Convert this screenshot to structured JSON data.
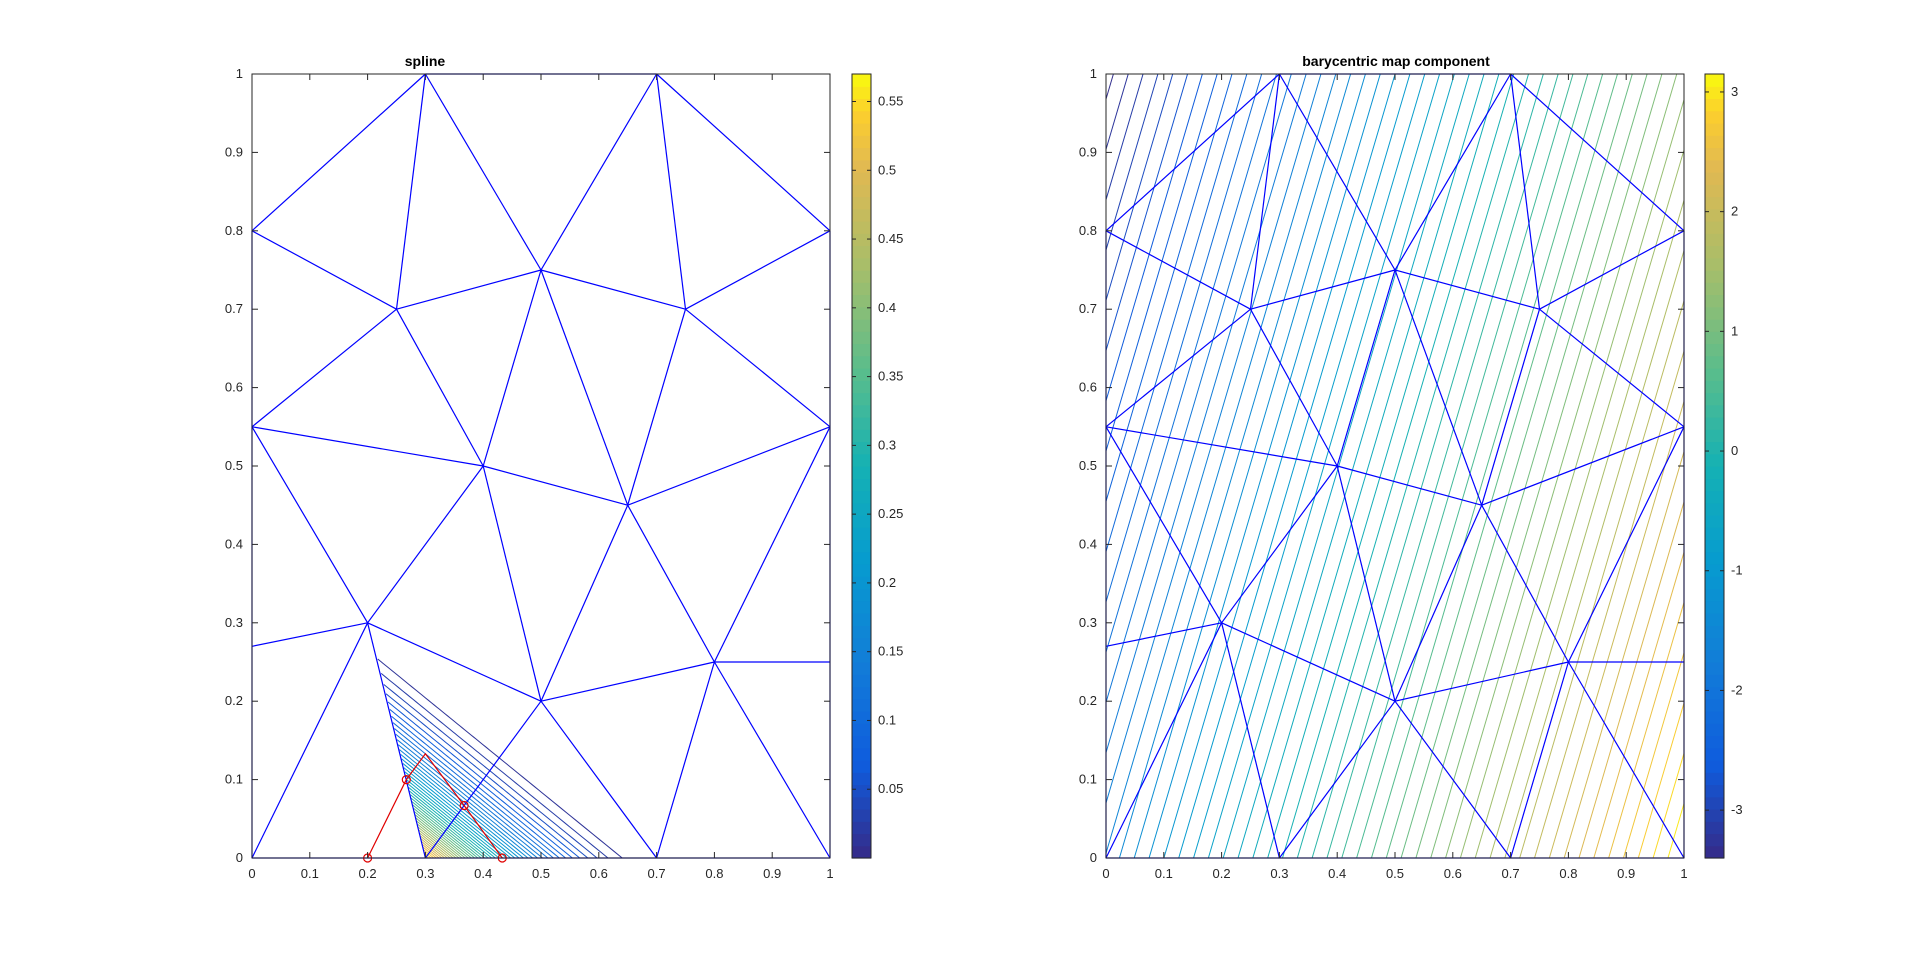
{
  "chart_data": [
    {
      "type": "contour",
      "title": "spline",
      "xlabel": "",
      "ylabel": "",
      "xlim": [
        0,
        1
      ],
      "ylim": [
        0,
        1
      ],
      "xticks": [
        "0",
        "0.1",
        "0.2",
        "0.3",
        "0.4",
        "0.5",
        "0.6",
        "0.7",
        "0.8",
        "0.9",
        "1"
      ],
      "yticks": [
        "0",
        "0.1",
        "0.2",
        "0.3",
        "0.4",
        "0.5",
        "0.6",
        "0.7",
        "0.8",
        "0.9",
        "1"
      ],
      "grid": false,
      "mesh_color": "#0000ff",
      "vertices": [
        [
          0,
          0
        ],
        [
          0.3,
          0
        ],
        [
          0.7,
          0
        ],
        [
          1,
          0
        ],
        [
          0,
          0.27
        ],
        [
          0,
          0.55
        ],
        [
          0,
          0.8
        ],
        [
          0.3,
          1
        ],
        [
          0.7,
          1
        ],
        [
          1,
          0.8
        ],
        [
          1,
          0.55
        ],
        [
          1,
          0.25
        ],
        [
          0.2,
          0.3
        ],
        [
          0.25,
          0.7
        ],
        [
          0.4,
          0.5
        ],
        [
          0.5,
          0.75
        ],
        [
          0.5,
          0.2
        ],
        [
          0.65,
          0.45
        ],
        [
          0.75,
          0.7
        ],
        [
          0.8,
          0.25
        ]
      ],
      "edges": [
        [
          0,
          1
        ],
        [
          1,
          2
        ],
        [
          2,
          3
        ],
        [
          3,
          11
        ],
        [
          11,
          10
        ],
        [
          10,
          9
        ],
        [
          9,
          8
        ],
        [
          8,
          7
        ],
        [
          7,
          6
        ],
        [
          6,
          5
        ],
        [
          5,
          4
        ],
        [
          4,
          0
        ],
        [
          0,
          12
        ],
        [
          1,
          12
        ],
        [
          1,
          16
        ],
        [
          2,
          16
        ],
        [
          2,
          19
        ],
        [
          3,
          19
        ],
        [
          4,
          12
        ],
        [
          5,
          12
        ],
        [
          5,
          14
        ],
        [
          5,
          13
        ],
        [
          6,
          13
        ],
        [
          7,
          13
        ],
        [
          7,
          15
        ],
        [
          8,
          15
        ],
        [
          8,
          18
        ],
        [
          9,
          18
        ],
        [
          10,
          18
        ],
        [
          10,
          17
        ],
        [
          10,
          19
        ],
        [
          11,
          19
        ],
        [
          12,
          14
        ],
        [
          12,
          16
        ],
        [
          13,
          14
        ],
        [
          13,
          15
        ],
        [
          14,
          15
        ],
        [
          14,
          16
        ],
        [
          14,
          17
        ],
        [
          15,
          17
        ],
        [
          15,
          18
        ],
        [
          16,
          17
        ],
        [
          16,
          19
        ],
        [
          17,
          18
        ],
        [
          17,
          19
        ]
      ],
      "contour_field": {
        "center": [
          0.3,
          0
        ],
        "peak": 0.565,
        "support_triangle": [
          [
            0.2,
            0.3
          ],
          [
            0.3,
            0
          ],
          [
            0.7,
            0
          ]
        ],
        "levels_min": 0.0125,
        "levels_step": 0.0125,
        "level_count": 45
      },
      "overlay": {
        "color": "#e00000",
        "polyline": [
          [
            0.2,
            0
          ],
          [
            0.267,
            0.1
          ],
          [
            0.3,
            0.133
          ],
          [
            0.367,
            0.067
          ],
          [
            0.433,
            0
          ]
        ],
        "markers": [
          [
            0.2,
            0
          ],
          [
            0.267,
            0.1
          ],
          [
            0.367,
            0.067
          ],
          [
            0.433,
            0
          ]
        ]
      },
      "colorbar": {
        "colormap": "parula",
        "range": [
          0,
          0.57
        ],
        "ticks": [
          0.05,
          0.1,
          0.15,
          0.2,
          0.25,
          0.3,
          0.35,
          0.4,
          0.45,
          0.5,
          0.55
        ],
        "tick_labels": [
          "0.05",
          "0.1",
          "0.15",
          "0.2",
          "0.25",
          "0.3",
          "0.35",
          "0.4",
          "0.45",
          "0.5",
          "0.55"
        ]
      }
    },
    {
      "type": "contour",
      "title": "barycentric map component",
      "xlabel": "",
      "ylabel": "",
      "xlim": [
        0,
        1
      ],
      "ylim": [
        0,
        1
      ],
      "xticks": [
        "0",
        "0.1",
        "0.2",
        "0.3",
        "0.4",
        "0.5",
        "0.6",
        "0.7",
        "0.8",
        "0.9",
        "1"
      ],
      "yticks": [
        "0",
        "0.1",
        "0.2",
        "0.3",
        "0.4",
        "0.5",
        "0.6",
        "0.7",
        "0.8",
        "0.9",
        "1"
      ],
      "grid": false,
      "mesh_color": "#0000ff",
      "contour_field": {
        "form": "a*(x - 0.4*y) + b",
        "value_range": [
          -3.4,
          3.15
        ],
        "level_spacing": 0.12
      },
      "colorbar": {
        "colormap": "parula",
        "range": [
          -3.4,
          3.15
        ],
        "ticks": [
          -3,
          -2,
          -1,
          0,
          1,
          2,
          3
        ],
        "tick_labels": [
          "-3",
          "-2",
          "-1",
          "0",
          "1",
          "2",
          "3"
        ]
      }
    }
  ]
}
